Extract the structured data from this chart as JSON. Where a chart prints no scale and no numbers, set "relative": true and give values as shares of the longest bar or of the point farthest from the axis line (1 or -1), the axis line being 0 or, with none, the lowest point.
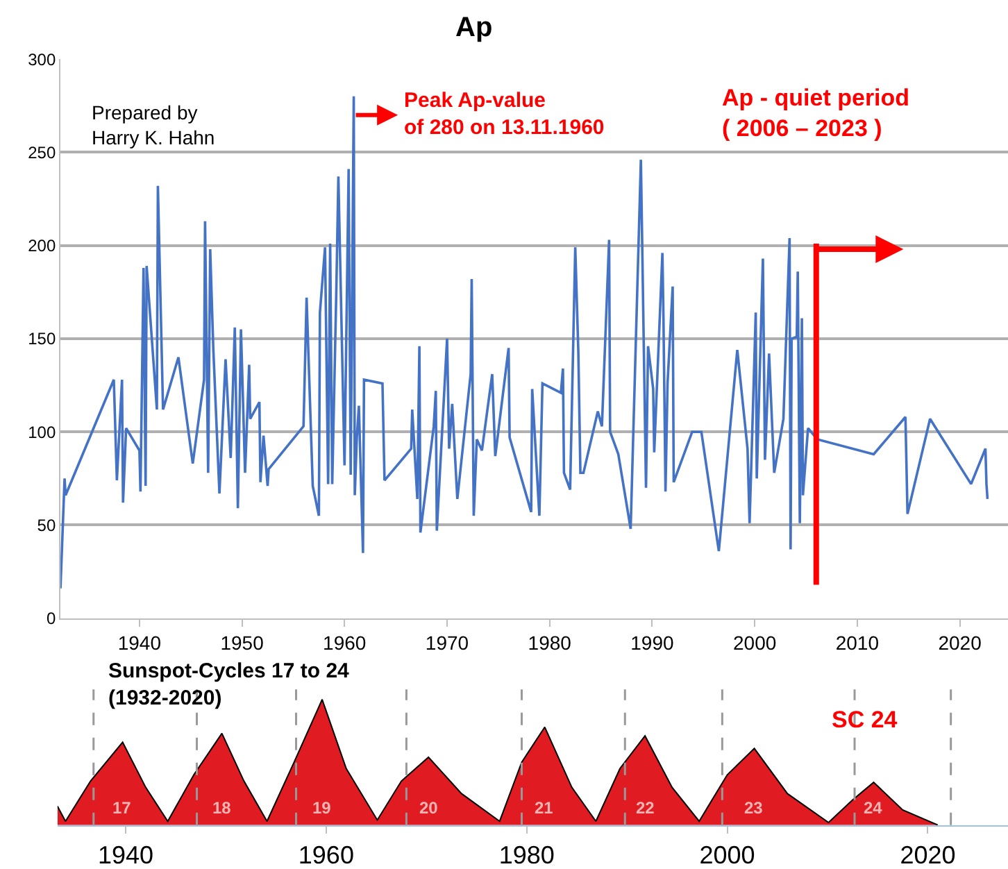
{
  "chart_data": [
    {
      "type": "line",
      "title": "Ap",
      "color": "#4472c4",
      "x": [
        1932.3,
        1932.7,
        1932.8,
        1937.5,
        1937.8,
        1938.3,
        1938.4,
        1938.7,
        1940.0,
        1940.1,
        1940.4,
        1940.6,
        1940.7,
        1941.7,
        1941.8,
        1942.3,
        1943.8,
        1945.2,
        1946.3,
        1946.4,
        1946.7,
        1946.9,
        1947.2,
        1947.8,
        1948.4,
        1948.9,
        1949.3,
        1949.6,
        1949.9,
        1950.3,
        1950.7,
        1950.8,
        1951.7,
        1951.8,
        1952.1,
        1952.5,
        1952.6,
        1956.0,
        1956.3,
        1956.9,
        1957.5,
        1957.6,
        1958.1,
        1958.4,
        1958.6,
        1958.8,
        1959.2,
        1959.4,
        1960.0,
        1960.4,
        1960.6,
        1960.9,
        1961.0,
        1961.2,
        1961.4,
        1961.8,
        1961.9,
        1963.7,
        1963.9,
        1966.5,
        1966.6,
        1967.1,
        1967.3,
        1967.4,
        1968.7,
        1968.9,
        1969.0,
        1970.0,
        1970.2,
        1970.5,
        1971.0,
        1972.3,
        1972.4,
        1972.6,
        1972.9,
        1973.4,
        1974.4,
        1974.7,
        1976.0,
        1976.1,
        1978.2,
        1978.3,
        1979.0,
        1979.3,
        1981.1,
        1981.3,
        1981.4,
        1982.0,
        1982.5,
        1982.8,
        1983.0,
        1983.3,
        1984.7,
        1985.1,
        1985.8,
        1985.9,
        1986.7,
        1987.9,
        1988.9,
        1989.4,
        1989.6,
        1990.1,
        1990.2,
        1991.0,
        1991.1,
        1991.3,
        1991.5,
        1992.0,
        1992.1,
        1993.9,
        1994.8,
        1996.5,
        1998.3,
        1999.3,
        1999.5,
        2000.1,
        2000.2,
        2000.8,
        2001.0,
        2001.4,
        2001.9,
        2002.8,
        2003.4,
        2003.5,
        2003.6,
        2004.1,
        2004.2,
        2004.4,
        2004.6,
        2004.7,
        2005.2,
        2006.1,
        2011.6,
        2014.7,
        2014.9,
        2017.1,
        2021.1,
        2022.5,
        2022.6,
        2022.7
      ],
      "values": [
        16,
        75,
        66,
        128,
        74,
        128,
        62,
        102,
        90,
        68,
        188,
        71,
        189,
        112,
        232,
        112,
        140,
        83,
        128,
        213,
        78,
        198,
        145,
        67,
        139,
        86,
        156,
        59,
        155,
        78,
        136,
        107,
        116,
        73,
        98,
        71,
        80,
        103,
        172,
        71,
        55,
        164,
        199,
        72,
        201,
        72,
        176,
        237,
        82,
        241,
        77,
        280,
        66,
        97,
        114,
        35,
        128,
        126,
        74,
        91,
        112,
        64,
        146,
        46,
        103,
        122,
        47,
        150,
        91,
        115,
        64,
        131,
        182,
        55,
        96,
        90,
        131,
        87,
        145,
        97,
        57,
        123,
        55,
        126,
        121,
        134,
        78,
        69,
        199,
        143,
        78,
        78,
        111,
        103,
        203,
        100,
        88,
        48,
        246,
        70,
        146,
        123,
        89,
        196,
        162,
        68,
        126,
        178,
        73,
        100,
        100,
        36,
        144,
        91,
        51,
        164,
        75,
        193,
        85,
        142,
        78,
        107,
        204,
        37,
        150,
        151,
        186,
        51,
        161,
        66,
        102,
        96,
        88,
        108,
        56,
        107,
        72,
        91,
        72,
        64
      ],
      "xlim": [
        1932.3,
        2024.7
      ],
      "ylim": [
        0,
        300
      ],
      "xticks": [
        1940,
        1950,
        1960,
        1970,
        1980,
        1990,
        2000,
        2010,
        2020
      ],
      "yticks": [
        0,
        50,
        100,
        150,
        200,
        250,
        300
      ],
      "grid": "y",
      "annotations": [
        "Prepared by\nHarry K. Hahn",
        {
          "text": "Peak Ap-value\nof 280 on 13.11.1960",
          "x": 1960.9,
          "y": 280
        }
      ],
      "ref_lines": [
        {
          "axis": "x",
          "value": 2006,
          "label": "Ap - quiet period\n( 2006 – 2023 )",
          "color": "#ff0000"
        }
      ]
    },
    {
      "type": "area",
      "title": "Sunspot-Cycles 17 to 24\n(1932-2020)",
      "relative": true,
      "color": "#e01b22",
      "x": [
        1933.2,
        1934.0,
        1936.5,
        1939.7,
        1942.0,
        1944.2,
        1946.8,
        1949.6,
        1951.8,
        1954.1,
        1956.8,
        1959.6,
        1962.0,
        1965.1,
        1967.5,
        1970.2,
        1973.5,
        1977.3,
        1979.5,
        1981.8,
        1984.5,
        1986.9,
        1989.3,
        1991.8,
        1994.5,
        1997.2,
        2000.0,
        2002.7,
        2006.0,
        2010.1,
        2012.5,
        2014.6,
        2017.5,
        2021.0
      ],
      "values": [
        0.15,
        0.03,
        0.35,
        0.66,
        0.3,
        0.03,
        0.4,
        0.73,
        0.35,
        0.03,
        0.5,
        1,
        0.45,
        0.04,
        0.35,
        0.54,
        0.25,
        0.03,
        0.5,
        0.78,
        0.3,
        0.03,
        0.45,
        0.71,
        0.3,
        0.03,
        0.4,
        0.61,
        0.25,
        0.02,
        0.2,
        0.34,
        0.12,
        0
      ],
      "xlim": [
        1933.2,
        2028
      ],
      "xticks": [
        1940,
        1960,
        1980,
        2000,
        2020
      ],
      "tick_labels": "x",
      "annotations": [
        {
          "text": "17",
          "x": 1939.7,
          "y": 0.04
        },
        {
          "text": "18",
          "x": 1949.6,
          "y": 0.04
        },
        {
          "text": "19",
          "x": 1959.6,
          "y": 0.04
        },
        {
          "text": "20",
          "x": 1970.2,
          "y": 0.04
        },
        {
          "text": "21",
          "x": 1981.8,
          "y": 0.04
        },
        {
          "text": "22",
          "x": 1991.8,
          "y": 0.04
        },
        {
          "text": "23",
          "x": 2002.7,
          "y": 0.04
        },
        {
          "text": "24",
          "x": 2014.6,
          "y": 0.04
        },
        "SC 24"
      ],
      "ref_lines": [
        {
          "axis": "x",
          "value": 1936.8,
          "color": "#999999",
          "line_style": "dashed"
        },
        {
          "axis": "x",
          "value": 1947.1,
          "color": "#999999",
          "line_style": "dashed"
        },
        {
          "axis": "x",
          "value": 1957.0,
          "color": "#999999",
          "line_style": "dashed"
        },
        {
          "axis": "x",
          "value": 1968.0,
          "color": "#999999",
          "line_style": "dashed"
        },
        {
          "axis": "x",
          "value": 1979.5,
          "color": "#999999",
          "line_style": "dashed"
        },
        {
          "axis": "x",
          "value": 1989.8,
          "color": "#999999",
          "line_style": "dashed"
        },
        {
          "axis": "x",
          "value": 1999.5,
          "color": "#999999",
          "line_style": "dashed"
        },
        {
          "axis": "x",
          "value": 2012.7,
          "color": "#999999",
          "line_style": "dashed"
        },
        {
          "axis": "x",
          "value": 2022.3,
          "color": "#999999",
          "line_style": "dashed"
        }
      ]
    }
  ]
}
